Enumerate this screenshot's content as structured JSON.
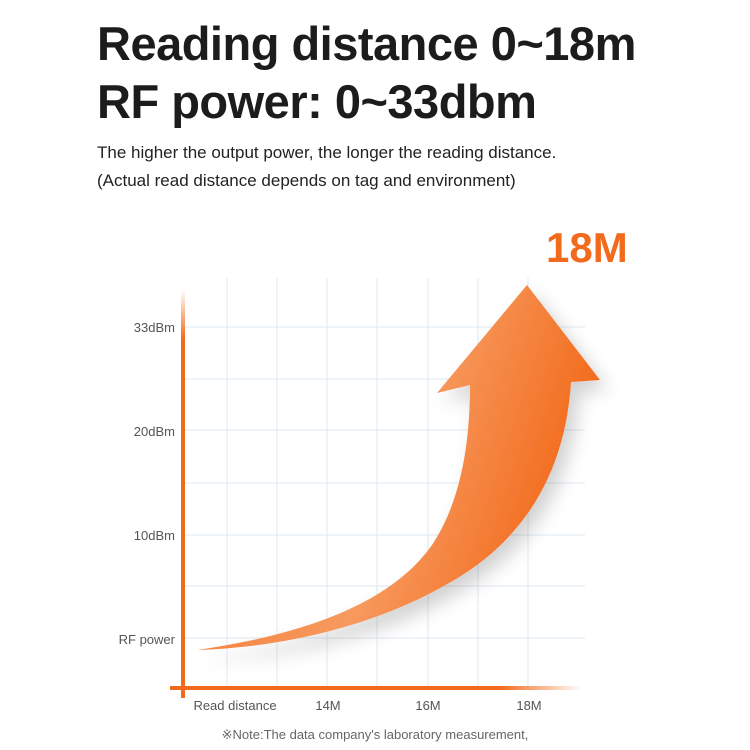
{
  "header": {
    "title_line1": "Reading distance 0~18m",
    "title_line2": "RF power: 0~33dbm",
    "subtitle_line1": "The higher the output power, the longer the reading distance.",
    "subtitle_line2": "(Actual read distance depends on tag and environment)"
  },
  "highlight": "18M",
  "note": "※Note:The data company's laboratory measurement,",
  "colors": {
    "accent": "#f26a1b",
    "grid": "#dde8f0",
    "text": "#1c1c1c"
  },
  "chart_data": {
    "type": "line",
    "title": "",
    "xlabel": "Read distance",
    "ylabel": "RF power",
    "x_ticks": [
      "14M",
      "16M",
      "18M"
    ],
    "y_ticks": [
      "33dBm",
      "20dBm",
      "10dBm"
    ],
    "grid": true,
    "series": []
  }
}
